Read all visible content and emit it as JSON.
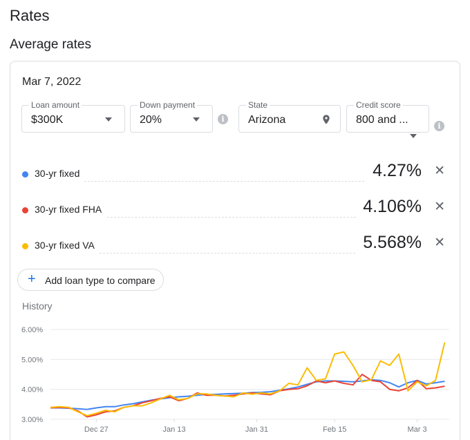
{
  "page": {
    "title": "Rates",
    "section_title": "Average rates"
  },
  "card": {
    "date": "Mar 7, 2022",
    "filters": {
      "loan_amount": {
        "label": "Loan amount",
        "value": "$300K"
      },
      "down_payment": {
        "label": "Down payment",
        "value": "20%"
      },
      "state": {
        "label": "State",
        "value": "Arizona"
      },
      "credit_score": {
        "label": "Credit score",
        "value": "800 and ..."
      }
    },
    "rates": [
      {
        "name": "30-yr fixed",
        "value": "4.27%",
        "color": "#4285f4"
      },
      {
        "name": "30-yr fixed FHA",
        "value": "4.106%",
        "color": "#ea4335"
      },
      {
        "name": "30-yr fixed VA",
        "value": "5.568%",
        "color": "#fbbc04"
      }
    ],
    "add_button_label": "Add loan type to compare",
    "history_label": "History",
    "icons": {
      "close": "close-icon",
      "info": "info-icon",
      "location": "location-pin-icon",
      "add": "plus-icon"
    }
  },
  "chart_data": {
    "type": "line",
    "ylim": [
      3.0,
      6.0
    ],
    "yticks": [
      "6.00%",
      "5.00%",
      "4.00%",
      "3.00%"
    ],
    "ytick_values": [
      6.0,
      5.0,
      4.0,
      3.0
    ],
    "xticks": [
      "Dec 27",
      "Jan 13",
      "Jan 31",
      "Feb 15",
      "Mar 3"
    ],
    "xtick_positions": [
      10,
      27,
      45,
      62,
      80
    ],
    "x_range": [
      0,
      87
    ],
    "grid": true,
    "series": [
      {
        "name": "30-yr fixed",
        "color": "#4285f4",
        "points": [
          [
            0,
            3.38
          ],
          [
            2,
            3.38
          ],
          [
            4,
            3.37
          ],
          [
            6,
            3.35
          ],
          [
            8,
            3.33
          ],
          [
            10,
            3.38
          ],
          [
            12,
            3.42
          ],
          [
            14,
            3.42
          ],
          [
            16,
            3.48
          ],
          [
            18,
            3.52
          ],
          [
            20,
            3.58
          ],
          [
            22,
            3.64
          ],
          [
            24,
            3.68
          ],
          [
            26,
            3.72
          ],
          [
            28,
            3.75
          ],
          [
            30,
            3.77
          ],
          [
            32,
            3.8
          ],
          [
            34,
            3.83
          ],
          [
            36,
            3.83
          ],
          [
            38,
            3.85
          ],
          [
            40,
            3.86
          ],
          [
            42,
            3.87
          ],
          [
            44,
            3.89
          ],
          [
            46,
            3.9
          ],
          [
            48,
            3.92
          ],
          [
            50,
            3.97
          ],
          [
            52,
            4.02
          ],
          [
            54,
            4.08
          ],
          [
            56,
            4.17
          ],
          [
            58,
            4.25
          ],
          [
            60,
            4.28
          ],
          [
            62,
            4.28
          ],
          [
            64,
            4.27
          ],
          [
            66,
            4.25
          ],
          [
            68,
            4.28
          ],
          [
            70,
            4.32
          ],
          [
            72,
            4.3
          ],
          [
            74,
            4.22
          ],
          [
            76,
            4.08
          ],
          [
            78,
            4.22
          ],
          [
            80,
            4.3
          ],
          [
            82,
            4.18
          ],
          [
            84,
            4.22
          ],
          [
            86,
            4.27
          ]
        ]
      },
      {
        "name": "30-yr fixed FHA",
        "color": "#ea4335",
        "points": [
          [
            0,
            3.38
          ],
          [
            2,
            3.4
          ],
          [
            4,
            3.38
          ],
          [
            6,
            3.28
          ],
          [
            8,
            3.08
          ],
          [
            10,
            3.15
          ],
          [
            12,
            3.25
          ],
          [
            14,
            3.28
          ],
          [
            16,
            3.4
          ],
          [
            18,
            3.45
          ],
          [
            20,
            3.55
          ],
          [
            22,
            3.62
          ],
          [
            24,
            3.7
          ],
          [
            26,
            3.75
          ],
          [
            28,
            3.62
          ],
          [
            30,
            3.7
          ],
          [
            32,
            3.88
          ],
          [
            34,
            3.8
          ],
          [
            36,
            3.8
          ],
          [
            38,
            3.78
          ],
          [
            40,
            3.8
          ],
          [
            42,
            3.85
          ],
          [
            44,
            3.88
          ],
          [
            46,
            3.85
          ],
          [
            48,
            3.82
          ],
          [
            50,
            3.95
          ],
          [
            52,
            4.0
          ],
          [
            54,
            4.02
          ],
          [
            56,
            4.12
          ],
          [
            58,
            4.28
          ],
          [
            60,
            4.22
          ],
          [
            62,
            4.28
          ],
          [
            64,
            4.2
          ],
          [
            66,
            4.15
          ],
          [
            68,
            4.5
          ],
          [
            70,
            4.3
          ],
          [
            72,
            4.25
          ],
          [
            74,
            4.0
          ],
          [
            76,
            3.95
          ],
          [
            78,
            4.05
          ],
          [
            80,
            4.3
          ],
          [
            82,
            4.02
          ],
          [
            84,
            4.05
          ],
          [
            86,
            4.106
          ]
        ]
      },
      {
        "name": "30-yr fixed VA",
        "color": "#fbbc04",
        "points": [
          [
            0,
            3.4
          ],
          [
            2,
            3.42
          ],
          [
            4,
            3.4
          ],
          [
            6,
            3.25
          ],
          [
            8,
            3.12
          ],
          [
            10,
            3.2
          ],
          [
            12,
            3.3
          ],
          [
            14,
            3.25
          ],
          [
            16,
            3.4
          ],
          [
            18,
            3.45
          ],
          [
            20,
            3.45
          ],
          [
            22,
            3.55
          ],
          [
            24,
            3.68
          ],
          [
            26,
            3.8
          ],
          [
            28,
            3.65
          ],
          [
            30,
            3.7
          ],
          [
            32,
            3.85
          ],
          [
            34,
            3.85
          ],
          [
            36,
            3.8
          ],
          [
            38,
            3.78
          ],
          [
            40,
            3.75
          ],
          [
            42,
            3.88
          ],
          [
            44,
            3.84
          ],
          [
            46,
            3.88
          ],
          [
            48,
            3.85
          ],
          [
            50,
            3.95
          ],
          [
            52,
            4.2
          ],
          [
            54,
            4.15
          ],
          [
            56,
            4.72
          ],
          [
            58,
            4.3
          ],
          [
            60,
            4.35
          ],
          [
            62,
            5.18
          ],
          [
            64,
            5.25
          ],
          [
            66,
            4.8
          ],
          [
            68,
            4.25
          ],
          [
            70,
            4.32
          ],
          [
            72,
            4.95
          ],
          [
            74,
            4.8
          ],
          [
            76,
            5.18
          ],
          [
            78,
            3.95
          ],
          [
            80,
            4.25
          ],
          [
            82,
            4.12
          ],
          [
            84,
            4.3
          ],
          [
            86,
            5.568
          ]
        ]
      }
    ]
  }
}
